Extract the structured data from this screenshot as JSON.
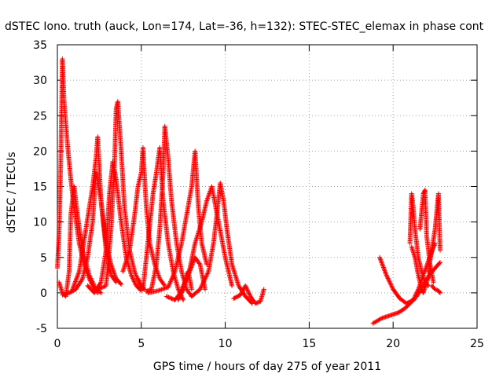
{
  "chart_data": {
    "type": "scatter",
    "title": "dSTEC Iono. truth (auck, Lon=174, Lat=-36, h=132): STEC-STEC_elemax in phase cont",
    "xlabel": "GPS time / hours of day 275 of year 2011",
    "ylabel": "dSTEC  / TECUs",
    "xlim": [
      0,
      25
    ],
    "ylim": [
      -5,
      35
    ],
    "xticks": [
      0,
      5,
      10,
      15,
      20,
      25
    ],
    "yticks": [
      -5,
      0,
      5,
      10,
      15,
      20,
      25,
      30,
      35
    ],
    "grid": true,
    "legend": "none",
    "marker": "plus",
    "color": "#ff0000",
    "series": [
      {
        "x": [
          0.0,
          0.1,
          0.2,
          0.3,
          0.4,
          0.6,
          0.8,
          1.0,
          1.3,
          1.6,
          1.9,
          2.2,
          2.4
        ],
        "y": [
          3.5,
          8,
          18,
          33,
          27,
          21,
          16,
          12,
          7,
          4,
          2,
          0.5,
          0.0
        ]
      },
      {
        "x": [
          0.1,
          0.3,
          0.5,
          0.7,
          0.8,
          1.0,
          1.2,
          1.5,
          1.9,
          2.3,
          2.6
        ],
        "y": [
          1.5,
          0.0,
          -0.5,
          3,
          11,
          15,
          11,
          6,
          2.5,
          0.5,
          0.0
        ]
      },
      {
        "x": [
          0.3,
          0.7,
          1.1,
          1.5,
          1.8,
          2.1,
          2.3,
          2.6,
          2.9,
          3.2,
          3.5,
          3.8
        ],
        "y": [
          -0.3,
          0.0,
          0.5,
          2,
          5,
          10,
          17,
          13,
          7,
          4,
          2,
          1.2
        ]
      },
      {
        "x": [
          0.9,
          1.3,
          1.7,
          2.1,
          2.3,
          2.4,
          2.6,
          2.9,
          3.2,
          3.5
        ],
        "y": [
          0.5,
          3,
          9,
          15,
          19,
          22,
          13,
          6,
          2.5,
          1.5
        ]
      },
      {
        "x": [
          1.8,
          2.2,
          2.6,
          2.9,
          3.1,
          3.3,
          3.5,
          3.8,
          4.1,
          4.4,
          4.7,
          5.0
        ],
        "y": [
          1.0,
          0.0,
          1.5,
          6,
          14,
          18.5,
          16,
          10,
          5,
          2.5,
          1.0,
          0.3
        ]
      },
      {
        "x": [
          2.4,
          2.9,
          3.2,
          3.4,
          3.5,
          3.6,
          3.8,
          4.0,
          4.3,
          4.6,
          4.9,
          5.2
        ],
        "y": [
          0.5,
          1.0,
          9,
          18,
          26,
          27,
          20,
          12,
          6,
          3,
          1.2,
          0.5
        ]
      },
      {
        "x": [
          3.9,
          4.3,
          4.6,
          4.8,
          5.0,
          5.1,
          5.2,
          5.3,
          5.5,
          5.8,
          6.1,
          6.4
        ],
        "y": [
          3,
          6,
          11,
          15,
          17,
          20.5,
          16,
          12,
          7,
          4,
          2,
          1
        ]
      },
      {
        "x": [
          4.8,
          5.1,
          5.3,
          5.5,
          5.7,
          5.9,
          6.1,
          6.3,
          6.6,
          6.9,
          7.2,
          7.5
        ],
        "y": [
          2,
          0.5,
          5,
          9.5,
          14,
          17,
          20.5,
          13,
          7,
          3,
          0.5,
          -1.0
        ]
      },
      {
        "x": [
          5.3,
          5.6,
          5.9,
          6.1,
          6.3,
          6.4,
          6.6,
          6.8,
          7.1,
          7.4,
          7.7,
          8.0
        ],
        "y": [
          0.2,
          0.5,
          4,
          9,
          17,
          23.5,
          19,
          13,
          7,
          3,
          0.5,
          -0.5
        ]
      },
      {
        "x": [
          5.4,
          6.0,
          6.6,
          7.0,
          7.4,
          7.7,
          8.0,
          8.2,
          8.4,
          8.6,
          8.9
        ],
        "y": [
          0.0,
          0.3,
          0.8,
          3,
          7,
          11,
          15,
          20,
          12,
          7,
          4
        ]
      },
      {
        "x": [
          6.5,
          7.0,
          7.5,
          7.9,
          8.2,
          8.6,
          8.9,
          9.2,
          9.6,
          10.0,
          10.4
        ],
        "y": [
          -0.5,
          -1.0,
          0.5,
          3.5,
          7,
          10,
          13,
          15,
          10,
          5,
          1.0
        ]
      },
      {
        "x": [
          7.2,
          7.5,
          7.7,
          7.8,
          8.0
        ],
        "y": [
          -1.0,
          0.5,
          2.5,
          3,
          0.5
        ]
      },
      {
        "x": [
          7.4,
          7.8,
          8.2,
          8.5,
          8.8
        ],
        "y": [
          0.5,
          2.5,
          5,
          4,
          0.5
        ]
      },
      {
        "x": [
          8.0,
          8.5,
          9.0,
          9.3,
          9.5,
          9.7,
          9.9,
          10.1,
          10.4,
          10.8,
          11.2,
          11.6
        ],
        "y": [
          -0.5,
          0.5,
          3,
          7,
          11,
          15.5,
          13,
          9,
          4,
          1,
          -0.5,
          -1.5
        ]
      },
      {
        "x": [
          10.5,
          10.9,
          11.2,
          11.5,
          11.8,
          12.1,
          12.3
        ],
        "y": [
          -0.8,
          -0.3,
          1,
          -0.5,
          -1.5,
          -1.2,
          0.5
        ]
      },
      {
        "x": [
          18.8,
          19.3,
          19.8,
          20.3,
          20.7,
          21.0,
          21.3,
          21.6,
          21.9,
          22.2,
          22.5,
          22.8
        ],
        "y": [
          -4.3,
          -3.6,
          -3.2,
          -2.8,
          -2.2,
          -1.5,
          -0.8,
          0.2,
          1.5,
          2.6,
          3.5,
          4.3
        ]
      },
      {
        "x": [
          19.2,
          19.6,
          20.0,
          20.4,
          20.8,
          21.2,
          21.5,
          21.8,
          22.1,
          22.5
        ],
        "y": [
          5,
          2.5,
          0.5,
          -0.8,
          -1.5,
          -1.0,
          0.5,
          2.5,
          4.5,
          7
        ]
      },
      {
        "x": [
          21.0,
          21.1,
          21.2,
          21.3,
          21.5,
          21.7,
          21.9,
          22.1
        ],
        "y": [
          7,
          14,
          12,
          9,
          5,
          3,
          1.5,
          1.0
        ]
      },
      {
        "x": [
          21.1,
          21.3,
          21.5,
          21.7,
          21.8,
          22.0,
          22.2
        ],
        "y": [
          6.5,
          5,
          2.5,
          0.5,
          0.0,
          1.5,
          3
        ]
      },
      {
        "x": [
          21.6,
          21.8,
          21.9,
          22.0,
          22.2,
          22.4
        ],
        "y": [
          9,
          14,
          14.5,
          8,
          4,
          1.5
        ]
      },
      {
        "x": [
          22.1,
          22.3,
          22.5,
          22.6,
          22.7,
          22.8
        ],
        "y": [
          3,
          6,
          9,
          11.5,
          14,
          6
        ]
      },
      {
        "x": [
          22.3,
          22.5,
          22.7,
          22.8
        ],
        "y": [
          1.0,
          0.5,
          0.3,
          0.0
        ]
      }
    ]
  }
}
